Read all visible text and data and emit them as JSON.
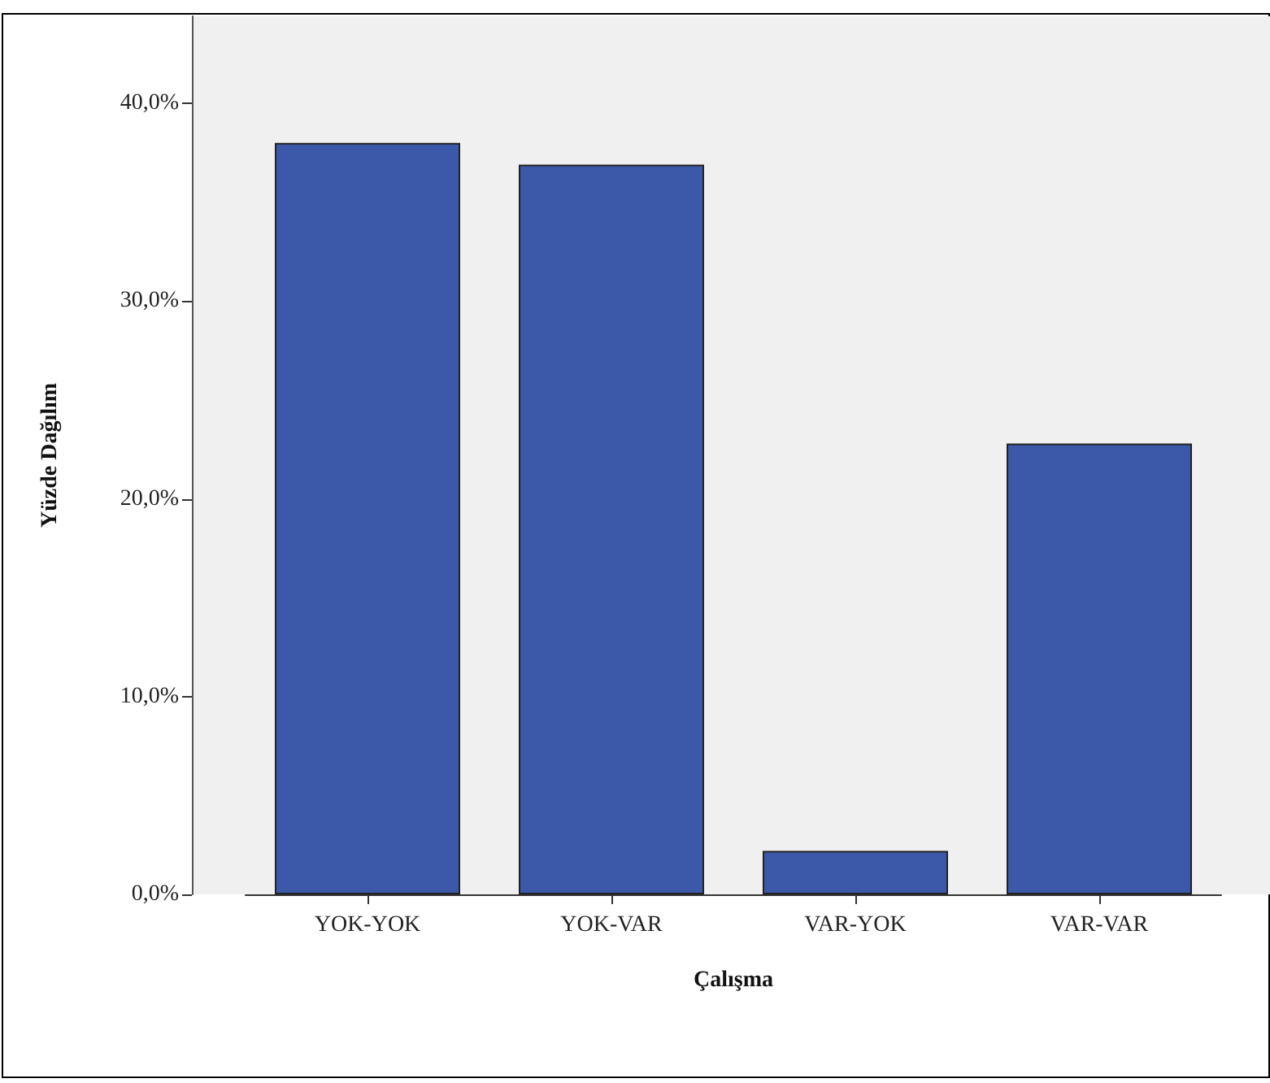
{
  "chart_data": {
    "type": "bar",
    "xlabel": "Çalışma",
    "ylabel": "Yüzde Dağılım",
    "categories": [
      "YOK-YOK",
      "YOK-VAR",
      "VAR-YOK",
      "VAR-VAR"
    ],
    "values": [
      38.0,
      36.9,
      2.2,
      22.8
    ],
    "color": "#3c58a9",
    "ylim": [
      0,
      44.4
    ],
    "yticks": [
      {
        "value": 0,
        "label": "0,0%"
      },
      {
        "value": 10,
        "label": "10,0%"
      },
      {
        "value": 20,
        "label": "20,0%"
      },
      {
        "value": 30,
        "label": "30,0%"
      },
      {
        "value": 40,
        "label": "40,0%"
      }
    ],
    "grid": false
  }
}
